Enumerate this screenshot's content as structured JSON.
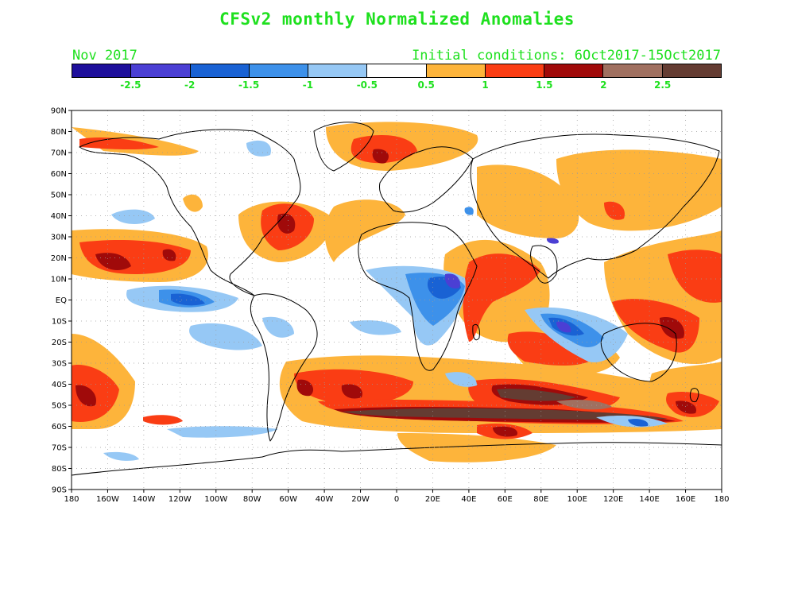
{
  "title": "CFSv2 monthly Normalized Anomalies",
  "month": "Nov 2017",
  "initial_conditions": "Initial conditions: 6Oct2017-15Oct2017",
  "colorbar": {
    "colors": [
      "#1e0f9b",
      "#4b3fd4",
      "#1962d4",
      "#3d91ea",
      "#96c8f5",
      "#ffffff",
      "#fdb43b",
      "#fa3d14",
      "#a00a0a",
      "#a07060",
      "#643c32"
    ],
    "labels": [
      "-2.5",
      "-2",
      "-1.5",
      "-1",
      "-0.5",
      "0.5",
      "1",
      "1.5",
      "2",
      "2.5"
    ]
  },
  "map": {
    "lat_labels": [
      "90N",
      "80N",
      "70N",
      "60N",
      "50N",
      "40N",
      "30N",
      "20N",
      "10N",
      "EQ",
      "10S",
      "20S",
      "30S",
      "40S",
      "50S",
      "60S",
      "70S",
      "80S",
      "90S"
    ],
    "lon_labels": [
      "180",
      "160W",
      "140W",
      "120W",
      "100W",
      "80W",
      "60W",
      "40W",
      "20W",
      "0",
      "20E",
      "40E",
      "60E",
      "80E",
      "100E",
      "120E",
      "140E",
      "160E",
      "180"
    ],
    "lon_range": [
      -180,
      180
    ],
    "lat_range": [
      -90,
      90
    ]
  }
}
